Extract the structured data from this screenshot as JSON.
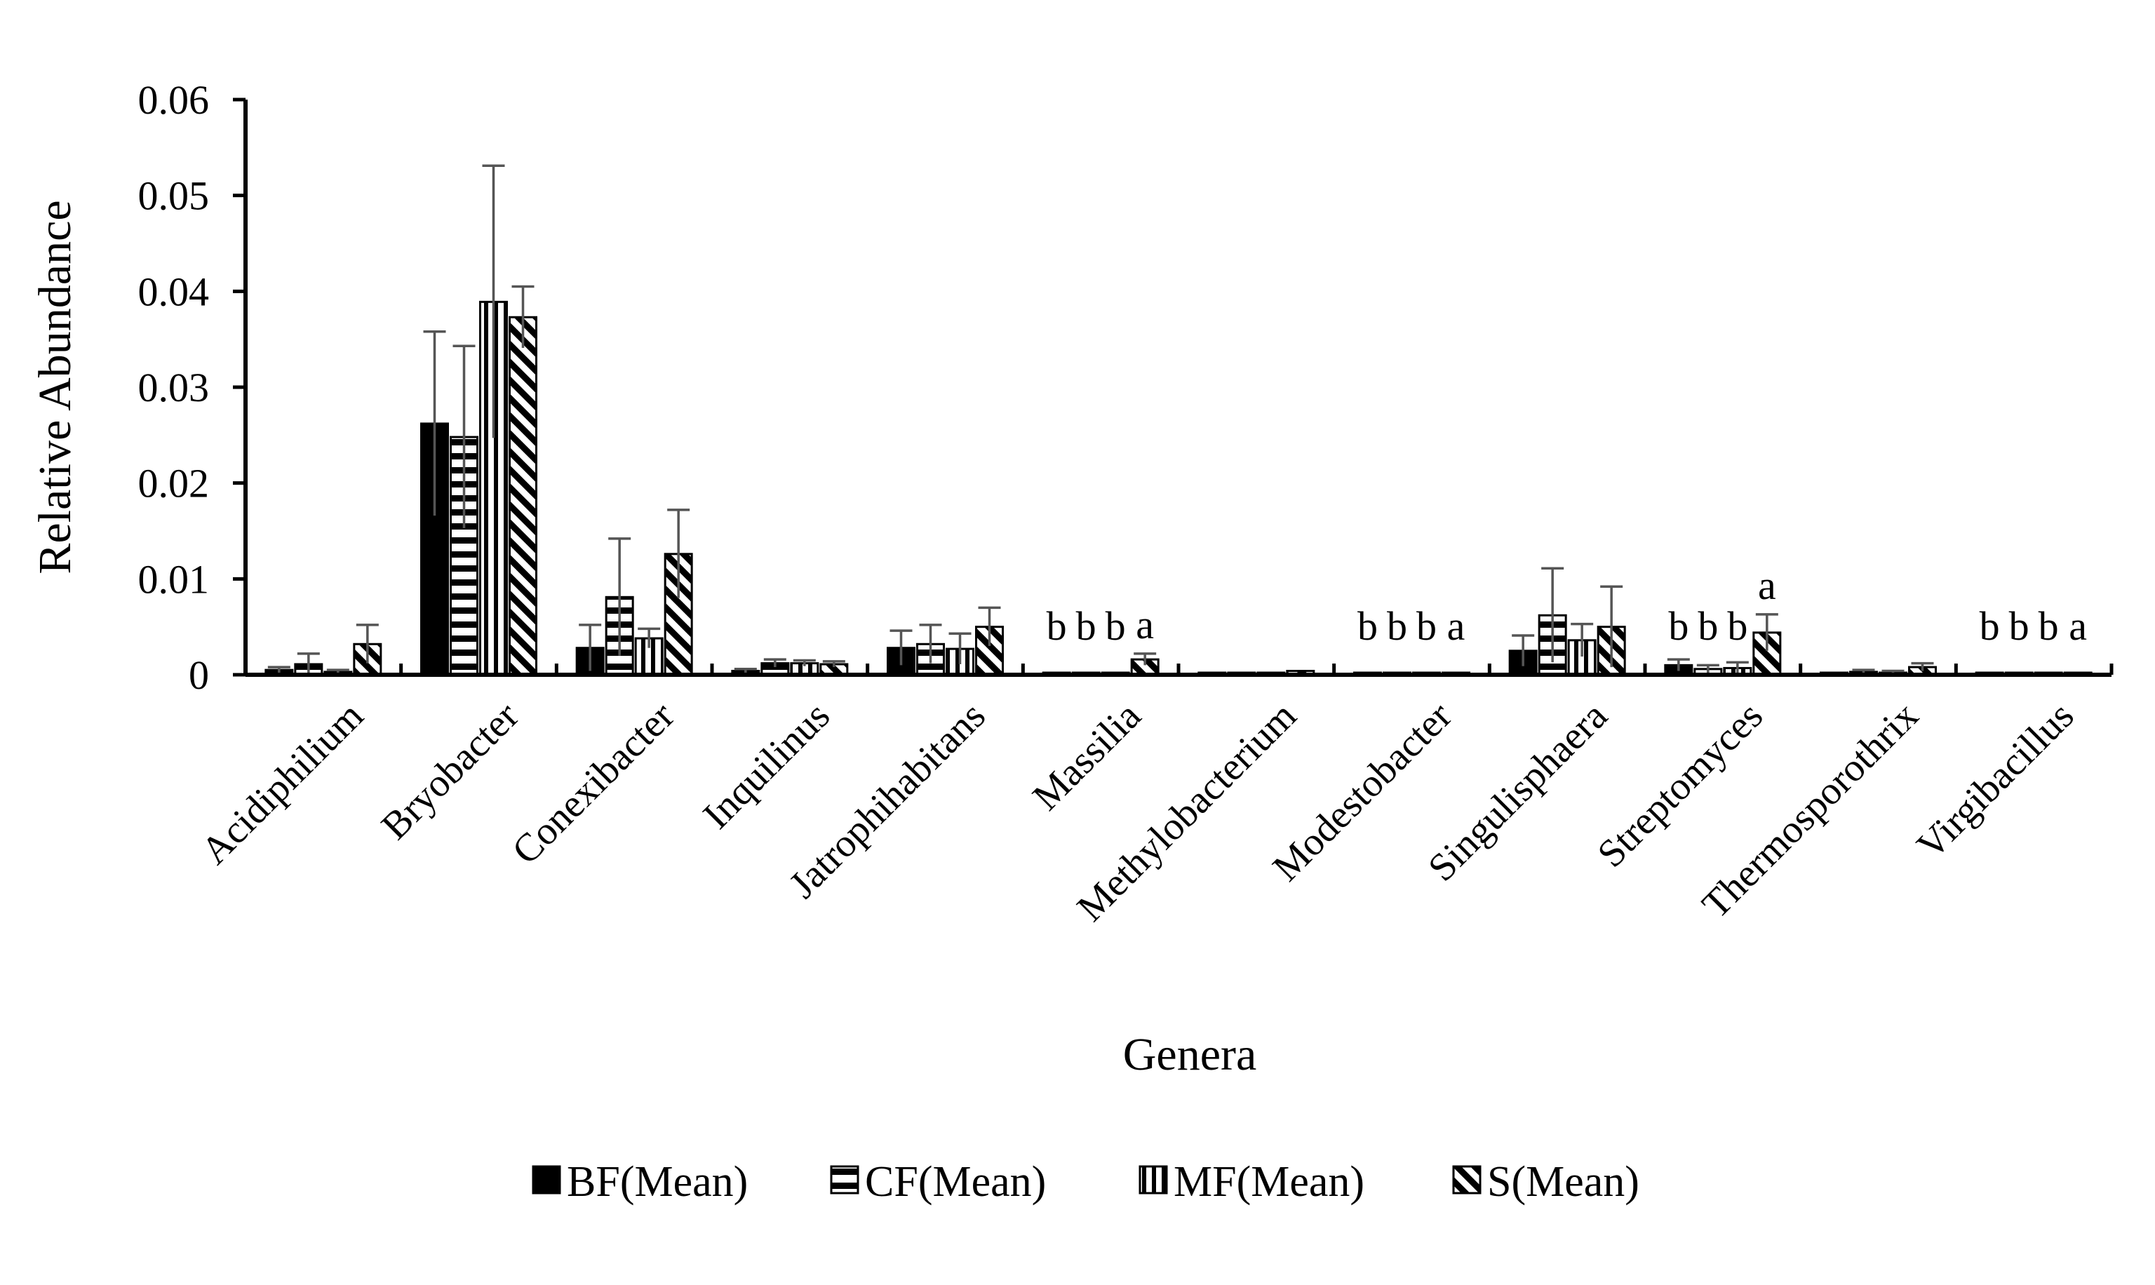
{
  "chart_data": {
    "type": "bar",
    "title": "",
    "xlabel": "Genera",
    "ylabel": "Relative Abundance",
    "ylim": [
      0,
      0.06
    ],
    "yticks": [
      "0",
      "0.01",
      "0.02",
      "0.03",
      "0.04",
      "0.05",
      "0.06"
    ],
    "ytick_values": [
      0,
      0.01,
      0.02,
      0.03,
      0.04,
      0.05,
      0.06
    ],
    "legend_position": "bottom",
    "categories": [
      "Acidiphilium",
      "Bryobacter",
      "Conexibacter",
      "Inquilinus",
      "Jatrophihabitans",
      "Massilia",
      "Methylobacterium",
      "Modestobacter",
      "Singulisphaera",
      "Streptomyces",
      "Thermosporothrix",
      "Virgibacillus"
    ],
    "series": [
      {
        "name": "BF(Mean)",
        "pattern": "solid",
        "values": [
          0.0005,
          0.0262,
          0.0028,
          0.0004,
          0.0028,
          0.0002,
          0.0001,
          0.0001,
          0.0025,
          0.001,
          0.0001,
          0.0001
        ],
        "errors": [
          0.0003,
          0.0096,
          0.0024,
          0.0002,
          0.0018,
          0.0001,
          0.0001,
          0.0001,
          0.0016,
          0.0006,
          0.0001,
          0.0001
        ]
      },
      {
        "name": "CF(Mean)",
        "pattern": "horizontal",
        "values": [
          0.0011,
          0.0248,
          0.0081,
          0.0012,
          0.0032,
          0.0001,
          0.0001,
          0.0001,
          0.0062,
          0.0006,
          0.0003,
          0.0001
        ],
        "errors": [
          0.0011,
          0.0095,
          0.0061,
          0.0004,
          0.002,
          0.0001,
          0.0001,
          0.0001,
          0.0049,
          0.0004,
          0.0002,
          0.0001
        ]
      },
      {
        "name": "MF(Mean)",
        "pattern": "vertical",
        "values": [
          0.0003,
          0.0389,
          0.0038,
          0.0012,
          0.0027,
          0.0001,
          0.0002,
          0.0001,
          0.0036,
          0.0007,
          0.0002,
          0.0001
        ],
        "errors": [
          0.0002,
          0.0142,
          0.001,
          0.0003,
          0.0016,
          0.0001,
          0.0001,
          0.0001,
          0.0017,
          0.0006,
          0.0002,
          0.0001
        ]
      },
      {
        "name": "S(Mean)",
        "pattern": "diagonal",
        "values": [
          0.0032,
          0.0373,
          0.0126,
          0.0011,
          0.005,
          0.0016,
          0.0004,
          0.0002,
          0.005,
          0.0044,
          0.0008,
          0.0002
        ],
        "errors": [
          0.002,
          0.0032,
          0.0046,
          0.0003,
          0.002,
          0.0006,
          0.0001,
          0.0001,
          0.0042,
          0.0019,
          0.0004,
          0.0001
        ]
      }
    ],
    "significance": [
      {
        "category": "Massilia",
        "letters": [
          "b",
          "b",
          "b",
          "a"
        ]
      },
      {
        "category": "Modestobacter",
        "letters": [
          "b",
          "b",
          "b",
          "a"
        ]
      },
      {
        "category": "Streptomyces",
        "letters": [
          "b",
          "b",
          "b",
          "a"
        ]
      },
      {
        "category": "Virgibacillus",
        "letters": [
          "b",
          "b",
          "b",
          "a"
        ]
      }
    ]
  },
  "colors": {
    "ink": "#000000",
    "error_bar": "#555555",
    "background": "#ffffff"
  }
}
